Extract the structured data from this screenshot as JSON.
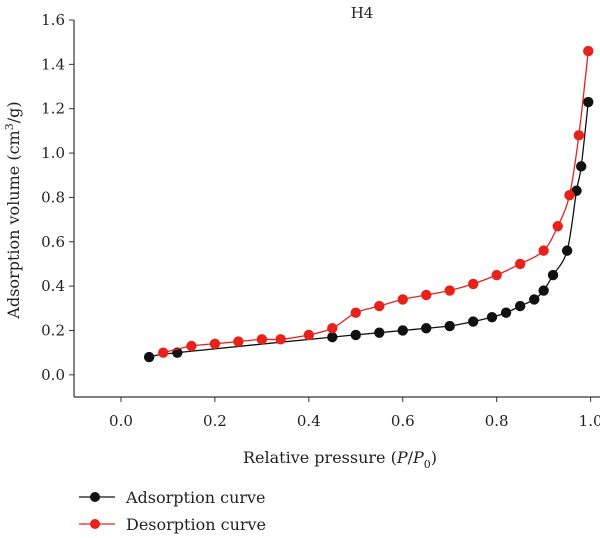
{
  "chart_data": {
    "type": "line",
    "title": "H4",
    "xlabel": {
      "prefix": "Relative pressure (",
      "p": "P",
      "slash": "/",
      "p0": "P",
      "sub": "0",
      "suffix": ")"
    },
    "ylabel": {
      "prefix": "Adsorption volume (cm",
      "sup": "3",
      "suffix": "/g)"
    },
    "xlim": [
      -0.1,
      1.02
    ],
    "ylim": [
      -0.1,
      1.6
    ],
    "x_ticks": [
      0.0,
      0.2,
      0.4,
      0.6,
      0.8,
      1.0
    ],
    "x_tick_labels": [
      "0.0",
      "0.2",
      "0.4",
      "0.6",
      "0.8",
      "1.0"
    ],
    "y_ticks": [
      0.0,
      0.2,
      0.4,
      0.6,
      0.8,
      1.0,
      1.2,
      1.4,
      1.6
    ],
    "y_tick_labels": [
      "0.0",
      "0.2",
      "0.4",
      "0.6",
      "0.8",
      "1.0",
      "1.2",
      "1.4",
      "1.6"
    ],
    "grid": false,
    "legend_position": "bottom-left, below plot",
    "series": [
      {
        "name": "Adsorption curve",
        "color": "#111111",
        "x": [
          0.06,
          0.12,
          0.45,
          0.5,
          0.55,
          0.6,
          0.65,
          0.7,
          0.75,
          0.79,
          0.82,
          0.85,
          0.88,
          0.9,
          0.92,
          0.95,
          0.97,
          0.98,
          0.995
        ],
        "y": [
          0.08,
          0.1,
          0.17,
          0.18,
          0.19,
          0.2,
          0.21,
          0.22,
          0.24,
          0.26,
          0.28,
          0.31,
          0.34,
          0.38,
          0.45,
          0.56,
          0.83,
          0.94,
          1.23
        ]
      },
      {
        "name": "Desorption curve",
        "color": "#e8221b",
        "x": [
          0.09,
          0.15,
          0.2,
          0.25,
          0.3,
          0.34,
          0.4,
          0.45,
          0.5,
          0.55,
          0.6,
          0.65,
          0.7,
          0.75,
          0.8,
          0.85,
          0.9,
          0.93,
          0.955,
          0.975,
          0.995
        ],
        "y": [
          0.1,
          0.13,
          0.14,
          0.15,
          0.16,
          0.16,
          0.18,
          0.21,
          0.28,
          0.31,
          0.34,
          0.36,
          0.38,
          0.41,
          0.45,
          0.5,
          0.56,
          0.67,
          0.81,
          1.08,
          1.46
        ]
      }
    ]
  }
}
